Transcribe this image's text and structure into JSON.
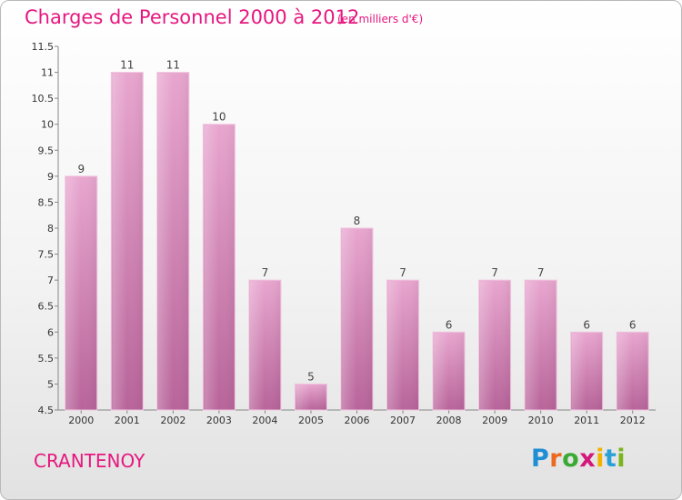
{
  "title": "Charges de Personnel 2000 à 2012",
  "subtitle": "(en milliers d'€)",
  "commune": "CRANTENOY",
  "brand": {
    "letters": [
      "P",
      "r",
      "o",
      "x",
      "i",
      "t",
      "i"
    ],
    "colors": [
      "#1e8fd4",
      "#ec6a1e",
      "#3aaa35",
      "#d4177b",
      "#f0b400",
      "#2aa0d8",
      "#7ab51d"
    ]
  },
  "chart_data": {
    "type": "bar",
    "title": "Charges de Personnel 2000 à 2012",
    "subtitle": "(en milliers d'€)",
    "categories": [
      "2000",
      "2001",
      "2002",
      "2003",
      "2004",
      "2005",
      "2006",
      "2007",
      "2008",
      "2009",
      "2010",
      "2011",
      "2012"
    ],
    "values": [
      9,
      11,
      11,
      10,
      7,
      5,
      8,
      7,
      6,
      7,
      7,
      6,
      6
    ],
    "ylim": [
      4.5,
      11.5
    ],
    "yticks": [
      "4.5",
      "5",
      "5.5",
      "6",
      "6.5",
      "7",
      "7.5",
      "8",
      "8.5",
      "9",
      "9.5",
      "10",
      "10.5",
      "11",
      "11.5"
    ],
    "grid": false,
    "bar_color": "#d98fbf"
  }
}
